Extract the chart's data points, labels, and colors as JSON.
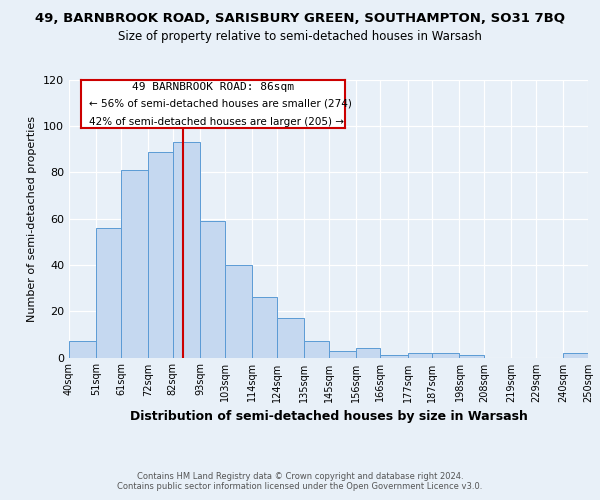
{
  "title1": "49, BARNBROOK ROAD, SARISBURY GREEN, SOUTHAMPTON, SO31 7BQ",
  "title2": "Size of property relative to semi-detached houses in Warsash",
  "xlabel": "Distribution of semi-detached houses by size in Warsash",
  "ylabel": "Number of semi-detached properties",
  "bin_labels": [
    "40sqm",
    "51sqm",
    "61sqm",
    "72sqm",
    "82sqm",
    "93sqm",
    "103sqm",
    "114sqm",
    "124sqm",
    "135sqm",
    "145sqm",
    "156sqm",
    "166sqm",
    "177sqm",
    "187sqm",
    "198sqm",
    "208sqm",
    "219sqm",
    "229sqm",
    "240sqm",
    "250sqm"
  ],
  "bin_edges": [
    40,
    51,
    61,
    72,
    82,
    93,
    103,
    114,
    124,
    135,
    145,
    156,
    166,
    177,
    187,
    198,
    208,
    219,
    229,
    240,
    250
  ],
  "bar_heights": [
    7,
    56,
    81,
    89,
    93,
    59,
    40,
    26,
    17,
    7,
    3,
    4,
    1,
    2,
    2,
    1,
    0,
    0,
    0,
    2
  ],
  "bar_color": "#c5d8f0",
  "bar_edge_color": "#5b9bd5",
  "vline_color": "#cc0000",
  "vline_x": 86,
  "annotation_title": "49 BARNBROOK ROAD: 86sqm",
  "annotation_line1": "← 56% of semi-detached houses are smaller (274)",
  "annotation_line2": "42% of semi-detached houses are larger (205) →",
  "annotation_box_color": "#cc0000",
  "ylim": [
    0,
    120
  ],
  "yticks": [
    0,
    20,
    40,
    60,
    80,
    100,
    120
  ],
  "footer1": "Contains HM Land Registry data © Crown copyright and database right 2024.",
  "footer2": "Contains public sector information licensed under the Open Government Licence v3.0.",
  "background_color": "#e8f0f8"
}
